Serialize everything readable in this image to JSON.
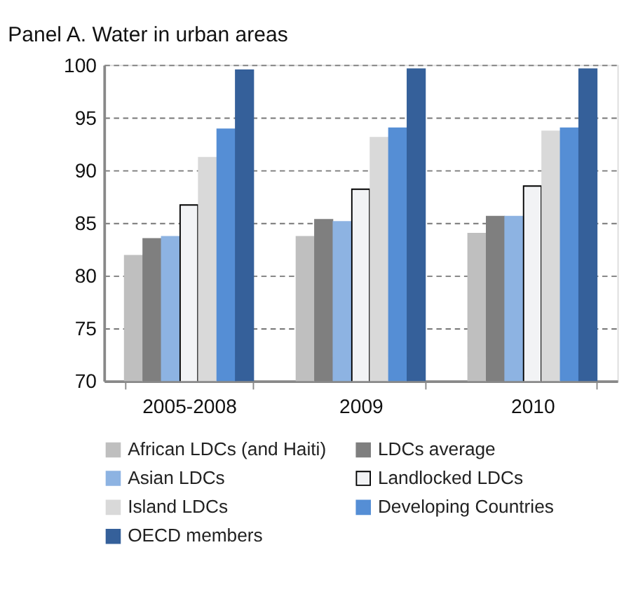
{
  "chart_data": {
    "type": "bar",
    "title": "Panel A. Water in urban areas",
    "categories": [
      "2005-2008",
      "2009",
      "2010"
    ],
    "series": [
      {
        "name": "African LDCs (and Haiti)",
        "color": "#bfbfbf",
        "values": [
          81.9,
          83.7,
          84.0
        ]
      },
      {
        "name": "LDCs average",
        "color": "#7f7f7f",
        "values": [
          83.5,
          85.3,
          85.6
        ]
      },
      {
        "name": "Asian LDCs",
        "color": "#8db3e2",
        "values": [
          83.7,
          85.1,
          85.6
        ]
      },
      {
        "name": "Landlocked LDCs",
        "color": "#f2f3f5",
        "values": [
          86.7,
          88.2,
          88.5
        ]
      },
      {
        "name": "Island LDCs",
        "color": "#d9d9d9",
        "values": [
          91.2,
          93.1,
          93.7
        ]
      },
      {
        "name": "Developing Countries",
        "color": "#558ed5",
        "values": [
          93.9,
          94.0,
          94.0
        ]
      },
      {
        "name": "OECD members",
        "color": "#35609a",
        "values": [
          99.5,
          99.6,
          99.6
        ]
      }
    ],
    "ylim": [
      70,
      100
    ],
    "yticks": [
      70,
      75,
      80,
      85,
      90,
      95,
      100
    ],
    "grid": "y",
    "legend": "bottom"
  }
}
